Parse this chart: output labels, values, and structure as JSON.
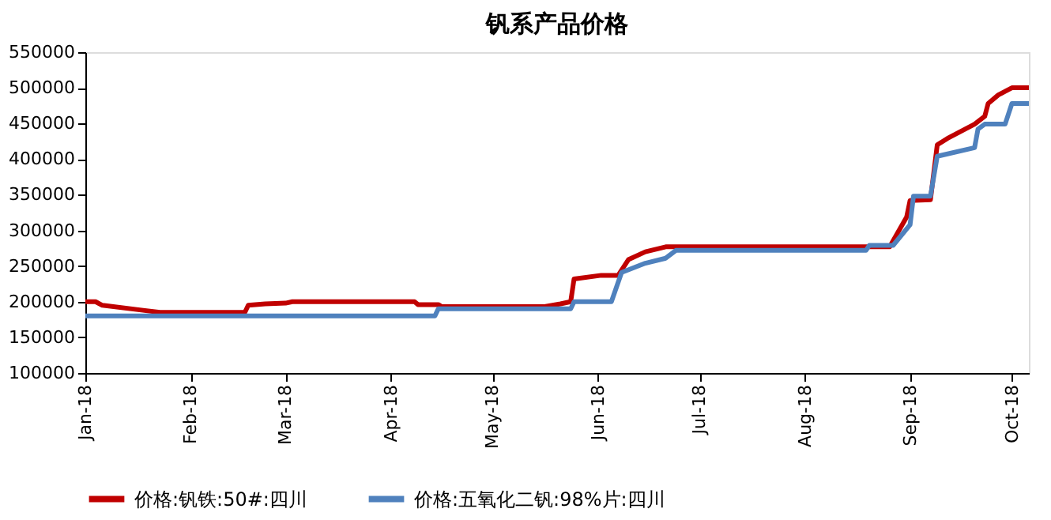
{
  "chart_data": {
    "type": "line",
    "title": "钒系产品价格",
    "xlim": [
      "2018-01-01",
      "2018-10-06"
    ],
    "xticks": [
      {
        "value": "2018-01-01",
        "label": "Jan-18"
      },
      {
        "value": "2018-02-01",
        "label": "Feb-18"
      },
      {
        "value": "2018-03-01",
        "label": "Mar-18"
      },
      {
        "value": "2018-04-01",
        "label": "Apr-18"
      },
      {
        "value": "2018-05-01",
        "label": "May-18"
      },
      {
        "value": "2018-06-01",
        "label": "Jun-18"
      },
      {
        "value": "2018-07-01",
        "label": "Jul-18"
      },
      {
        "value": "2018-08-01",
        "label": "Aug-18"
      },
      {
        "value": "2018-09-01",
        "label": "Sep-18"
      },
      {
        "value": "2018-10-01",
        "label": "Oct-18"
      }
    ],
    "ylim": [
      100000,
      550000
    ],
    "yticks": [
      100000,
      150000,
      200000,
      250000,
      300000,
      350000,
      400000,
      450000,
      500000,
      550000
    ],
    "grid": false,
    "legend": "bottom",
    "line_style": "solid",
    "marker": "none",
    "series": [
      {
        "name": "价格:钒铁:50#:四川",
        "color": "#c00000",
        "x": [
          "2018-01-01",
          "2018-01-04",
          "2018-01-06",
          "2018-01-18",
          "2018-01-23",
          "2018-02-17",
          "2018-02-18",
          "2018-02-23",
          "2018-03-01",
          "2018-03-03",
          "2018-04-08",
          "2018-04-09",
          "2018-04-15",
          "2018-04-16",
          "2018-05-16",
          "2018-05-21",
          "2018-05-24",
          "2018-05-25",
          "2018-06-02",
          "2018-06-07",
          "2018-06-10",
          "2018-06-15",
          "2018-06-21",
          "2018-08-26",
          "2018-08-31",
          "2018-09-01",
          "2018-09-07",
          "2018-09-09",
          "2018-09-12",
          "2018-09-20",
          "2018-09-23",
          "2018-09-24",
          "2018-09-27",
          "2018-10-01",
          "2018-10-06"
        ],
        "values": [
          200000,
          200000,
          195000,
          188000,
          185000,
          185000,
          195000,
          197000,
          198000,
          200000,
          200000,
          196000,
          196000,
          193000,
          193000,
          197000,
          200000,
          232000,
          237000,
          237000,
          259000,
          270000,
          277000,
          277000,
          319000,
          342000,
          343000,
          420000,
          429000,
          449000,
          460000,
          478000,
          490000,
          500000,
          500000
        ]
      },
      {
        "name": "价格:五氧化二钒:98%片:四川",
        "color": "#4f81bd",
        "x": [
          "2018-01-01",
          "2018-04-14",
          "2018-04-15",
          "2018-05-24",
          "2018-05-25",
          "2018-06-05",
          "2018-06-08",
          "2018-06-15",
          "2018-06-21",
          "2018-06-24",
          "2018-08-19",
          "2018-08-20",
          "2018-08-27",
          "2018-09-01",
          "2018-09-02",
          "2018-09-07",
          "2018-09-09",
          "2018-09-20",
          "2018-09-21",
          "2018-09-23",
          "2018-09-29",
          "2018-10-01",
          "2018-10-06"
        ],
        "values": [
          180000,
          180000,
          190000,
          190000,
          200000,
          200000,
          241000,
          254000,
          261000,
          272000,
          272000,
          279000,
          279000,
          308000,
          348000,
          348000,
          404000,
          416000,
          442000,
          449000,
          449000,
          478000,
          478000
        ]
      }
    ]
  }
}
